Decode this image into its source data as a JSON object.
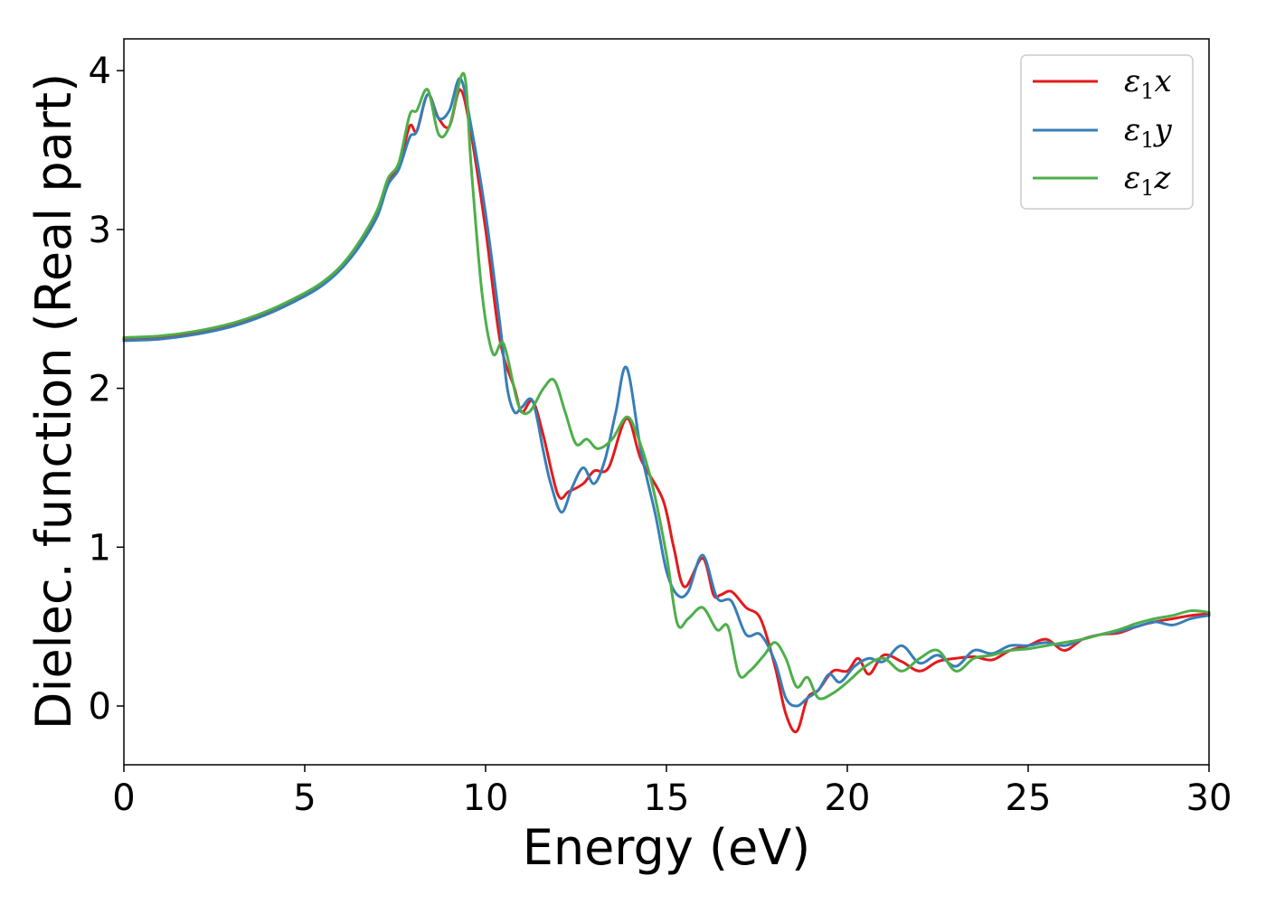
{
  "chart_data": {
    "type": "line",
    "title": "",
    "xlabel": "Energy (eV)",
    "ylabel": "Dielec. function (Real part)",
    "xlim": [
      0,
      30
    ],
    "ylim": [
      -0.37,
      4.2
    ],
    "xticks": [
      0,
      5,
      10,
      15,
      20,
      25,
      30
    ],
    "yticks": [
      0,
      1,
      2,
      3,
      4
    ],
    "grid": false,
    "legend_position": "top-right",
    "series": [
      {
        "name": "ε1x",
        "legend_main": "ε",
        "legend_sub": "1",
        "legend_suffix": "x",
        "color": "#e41a1c",
        "x": [
          0,
          1,
          2,
          3,
          4,
          5,
          5.5,
          6,
          6.5,
          7,
          7.3,
          7.6,
          7.9,
          8.1,
          8.4,
          8.7,
          9.0,
          9.3,
          9.6,
          10.0,
          10.4,
          10.8,
          11.0,
          11.3,
          11.6,
          12.0,
          12.3,
          12.7,
          13.0,
          13.4,
          13.9,
          14.3,
          14.9,
          15.2,
          15.5,
          16.0,
          16.3,
          16.5,
          16.8,
          17.2,
          17.6,
          18.0,
          18.3,
          18.6,
          18.9,
          19.2,
          19.6,
          20.0,
          20.3,
          20.6,
          21.0,
          21.5,
          22.0,
          22.5,
          23.0,
          23.5,
          24.0,
          24.5,
          25.0,
          25.5,
          26.0,
          26.5,
          27.0,
          27.5,
          28.0,
          28.5,
          29.0,
          29.5,
          30.0
        ],
        "y": [
          2.31,
          2.32,
          2.35,
          2.4,
          2.48,
          2.59,
          2.66,
          2.76,
          2.9,
          3.1,
          3.3,
          3.4,
          3.65,
          3.62,
          3.85,
          3.7,
          3.65,
          3.88,
          3.6,
          3.0,
          2.3,
          2.0,
          1.85,
          1.92,
          1.7,
          1.33,
          1.35,
          1.4,
          1.48,
          1.5,
          1.81,
          1.55,
          1.3,
          1.0,
          0.75,
          0.93,
          0.7,
          0.7,
          0.72,
          0.62,
          0.55,
          0.25,
          -0.05,
          -0.16,
          0.05,
          0.1,
          0.22,
          0.22,
          0.3,
          0.2,
          0.32,
          0.28,
          0.22,
          0.28,
          0.3,
          0.31,
          0.29,
          0.35,
          0.38,
          0.42,
          0.35,
          0.42,
          0.45,
          0.46,
          0.5,
          0.53,
          0.55,
          0.57,
          0.58
        ]
      },
      {
        "name": "ε1y",
        "legend_main": "ε",
        "legend_sub": "1",
        "legend_suffix": "y",
        "color": "#377eb8",
        "x": [
          0,
          1,
          2,
          3,
          4,
          5,
          5.5,
          6,
          6.5,
          7,
          7.3,
          7.6,
          7.9,
          8.1,
          8.4,
          8.7,
          9.0,
          9.3,
          9.6,
          10.0,
          10.4,
          10.6,
          10.8,
          11.0,
          11.3,
          11.6,
          11.8,
          12.1,
          12.4,
          12.7,
          13.0,
          13.3,
          13.6,
          13.9,
          14.3,
          14.7,
          15.0,
          15.3,
          15.6,
          16.0,
          16.4,
          16.8,
          17.2,
          17.6,
          18.0,
          18.3,
          18.6,
          18.9,
          19.2,
          19.5,
          19.8,
          20.2,
          20.6,
          21.0,
          21.5,
          22.0,
          22.5,
          23.0,
          23.5,
          24.0,
          24.5,
          25.0,
          25.5,
          26.0,
          26.5,
          27.0,
          27.5,
          28.0,
          28.5,
          29.0,
          29.5,
          30.0
        ],
        "y": [
          2.3,
          2.31,
          2.34,
          2.39,
          2.47,
          2.58,
          2.65,
          2.75,
          2.89,
          3.08,
          3.28,
          3.38,
          3.58,
          3.62,
          3.85,
          3.7,
          3.75,
          3.95,
          3.65,
          3.1,
          2.4,
          2.0,
          1.85,
          1.88,
          1.92,
          1.6,
          1.4,
          1.22,
          1.38,
          1.5,
          1.4,
          1.55,
          1.85,
          2.13,
          1.6,
          1.2,
          0.85,
          0.7,
          0.72,
          0.95,
          0.68,
          0.66,
          0.45,
          0.45,
          0.28,
          0.05,
          0.0,
          0.05,
          0.1,
          0.2,
          0.15,
          0.25,
          0.3,
          0.28,
          0.38,
          0.27,
          0.32,
          0.25,
          0.35,
          0.33,
          0.38,
          0.38,
          0.4,
          0.38,
          0.42,
          0.45,
          0.47,
          0.5,
          0.53,
          0.51,
          0.55,
          0.57
        ]
      },
      {
        "name": "ε1z",
        "legend_main": "ε",
        "legend_sub": "1",
        "legend_suffix": "z",
        "color": "#4daf4a",
        "x": [
          0,
          1,
          2,
          3,
          4,
          5,
          5.5,
          6,
          6.5,
          7,
          7.3,
          7.6,
          7.9,
          8.1,
          8.4,
          8.7,
          9.0,
          9.4,
          9.6,
          9.9,
          10.2,
          10.5,
          10.9,
          11.2,
          11.6,
          11.9,
          12.2,
          12.5,
          12.8,
          13.1,
          13.5,
          13.9,
          14.2,
          14.6,
          15.0,
          15.3,
          15.6,
          16.0,
          16.4,
          16.7,
          17.0,
          17.3,
          17.7,
          18.0,
          18.3,
          18.6,
          18.9,
          19.2,
          19.6,
          20.0,
          20.5,
          21.0,
          21.5,
          22.0,
          22.5,
          23.0,
          23.5,
          24.0,
          24.5,
          25.0,
          25.5,
          26.0,
          26.5,
          27.0,
          27.5,
          28.0,
          28.5,
          29.0,
          29.5,
          30.0
        ],
        "y": [
          2.32,
          2.33,
          2.36,
          2.41,
          2.49,
          2.6,
          2.67,
          2.77,
          2.92,
          3.12,
          3.32,
          3.42,
          3.72,
          3.75,
          3.88,
          3.6,
          3.65,
          3.98,
          3.4,
          2.6,
          2.22,
          2.28,
          1.9,
          1.85,
          2.0,
          2.05,
          1.85,
          1.65,
          1.68,
          1.62,
          1.68,
          1.82,
          1.7,
          1.4,
          0.95,
          0.52,
          0.55,
          0.62,
          0.48,
          0.5,
          0.2,
          0.22,
          0.32,
          0.4,
          0.3,
          0.12,
          0.18,
          0.05,
          0.08,
          0.15,
          0.25,
          0.3,
          0.22,
          0.3,
          0.35,
          0.22,
          0.3,
          0.32,
          0.35,
          0.36,
          0.38,
          0.4,
          0.42,
          0.45,
          0.48,
          0.52,
          0.55,
          0.57,
          0.6,
          0.59
        ]
      }
    ]
  }
}
